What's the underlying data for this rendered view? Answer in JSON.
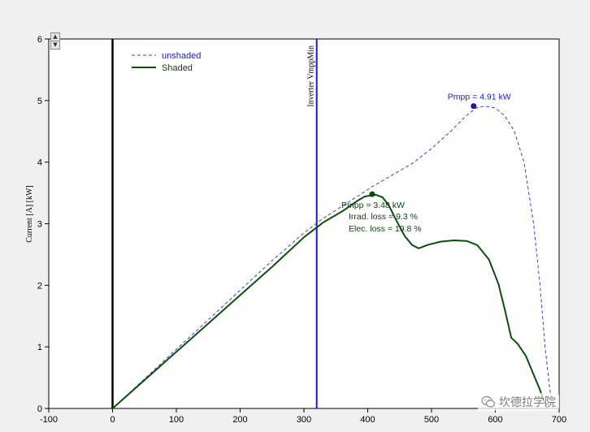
{
  "chart_data": {
    "type": "line",
    "title": "",
    "xlabel": "",
    "ylabel": "Current [A] [kW]",
    "xlim": [
      -100,
      700
    ],
    "ylim": [
      0,
      6
    ],
    "x_ticks": [
      -100,
      0,
      100,
      200,
      300,
      400,
      500,
      600,
      700
    ],
    "y_ticks": [
      0,
      1,
      2,
      3,
      4,
      5,
      6
    ],
    "grid": false,
    "legend_position": "top-left",
    "series": [
      {
        "name": "unshaded",
        "style": "dashed",
        "color": "#3a3ae0",
        "points": [
          [
            0,
            0
          ],
          [
            50,
            0.48
          ],
          [
            100,
            0.96
          ],
          [
            150,
            1.44
          ],
          [
            200,
            1.92
          ],
          [
            250,
            2.4
          ],
          [
            300,
            2.85
          ],
          [
            325,
            3.05
          ],
          [
            350,
            3.22
          ],
          [
            380,
            3.42
          ],
          [
            410,
            3.62
          ],
          [
            440,
            3.8
          ],
          [
            470,
            3.98
          ],
          [
            500,
            4.22
          ],
          [
            530,
            4.5
          ],
          [
            555,
            4.76
          ],
          [
            570,
            4.88
          ],
          [
            583,
            4.91
          ],
          [
            600,
            4.88
          ],
          [
            615,
            4.75
          ],
          [
            630,
            4.5
          ],
          [
            645,
            4.0
          ],
          [
            660,
            3.0
          ],
          [
            670,
            2.0
          ],
          [
            678,
            1.0
          ],
          [
            685,
            0.35
          ],
          [
            690,
            0
          ]
        ]
      },
      {
        "name": "Shaded",
        "style": "solid",
        "color": "#0f4d0f",
        "points": [
          [
            0,
            0
          ],
          [
            50,
            0.46
          ],
          [
            100,
            0.92
          ],
          [
            150,
            1.38
          ],
          [
            200,
            1.84
          ],
          [
            250,
            2.3
          ],
          [
            300,
            2.78
          ],
          [
            330,
            3.02
          ],
          [
            360,
            3.2
          ],
          [
            385,
            3.38
          ],
          [
            395,
            3.44
          ],
          [
            405,
            3.46
          ],
          [
            413,
            3.47
          ],
          [
            423,
            3.43
          ],
          [
            433,
            3.3
          ],
          [
            445,
            3.05
          ],
          [
            458,
            2.8
          ],
          [
            470,
            2.65
          ],
          [
            480,
            2.6
          ],
          [
            495,
            2.66
          ],
          [
            515,
            2.71
          ],
          [
            535,
            2.73
          ],
          [
            555,
            2.72
          ],
          [
            572,
            2.65
          ],
          [
            590,
            2.42
          ],
          [
            605,
            2.02
          ],
          [
            615,
            1.6
          ],
          [
            625,
            1.15
          ],
          [
            635,
            1.05
          ],
          [
            648,
            0.85
          ],
          [
            660,
            0.55
          ],
          [
            670,
            0.3
          ],
          [
            678,
            0.08
          ],
          [
            682,
            0
          ]
        ]
      }
    ],
    "reference_lines": [
      {
        "orientation": "vertical",
        "x": 0,
        "color": "#000000",
        "label": ""
      },
      {
        "orientation": "vertical",
        "x": 320,
        "color": "#1a1ad4",
        "label": "Inverter VmppMin"
      }
    ],
    "markers": [
      {
        "series": "unshaded",
        "x": 566,
        "y": 4.91,
        "label": "Pmpp = 4.91 kW",
        "color": "#1a1a9a"
      },
      {
        "series": "Shaded",
        "x": 407,
        "y": 3.48,
        "label": "Pmpp = 3.48 kW",
        "color": "#0f4d0f"
      }
    ],
    "annotations": [
      "Irrad. loss = 9.3 %",
      "Elec. loss = 19.8 %"
    ]
  },
  "watermark": {
    "text": "坎德拉学院",
    "icon": "wechat-icon"
  },
  "spin_control": {
    "up_icon": "arrow-up-icon",
    "down_icon": "arrow-down-icon"
  }
}
